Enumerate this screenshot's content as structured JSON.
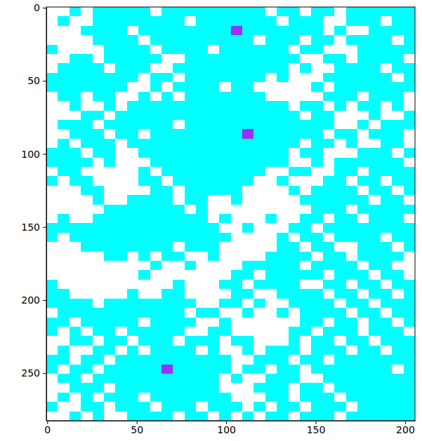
{
  "chart_data": {
    "type": "heatmap",
    "colors": [
      "#ffffff",
      "#00ffff",
      "#9b30ff"
    ],
    "xlim": [
      -0.5,
      205.5
    ],
    "ylim": [
      282.5,
      -0.5
    ],
    "xticks": [
      0,
      50,
      100,
      150,
      200
    ],
    "yticks": [
      0,
      50,
      100,
      150,
      200,
      250
    ],
    "cells": [
      [
        0,
        0,
        1,
        0,
        1,
        1,
        1,
        1,
        1,
        0,
        1,
        1,
        1,
        1,
        1,
        1,
        1,
        1,
        1,
        0,
        1,
        1,
        0,
        1,
        1,
        0,
        1,
        1,
        1,
        1,
        1,
        1
      ],
      [
        0,
        1,
        0,
        0,
        1,
        1,
        1,
        1,
        1,
        1,
        1,
        1,
        0,
        1,
        1,
        1,
        1,
        1,
        1,
        1,
        0,
        1,
        1,
        1,
        0,
        0,
        1,
        1,
        1,
        0,
        1,
        1
      ],
      [
        0,
        0,
        0,
        1,
        1,
        1,
        1,
        0,
        1,
        1,
        1,
        1,
        1,
        1,
        1,
        1,
        2,
        1,
        1,
        1,
        1,
        1,
        1,
        1,
        0,
        1,
        0,
        0,
        1,
        1,
        1,
        1
      ],
      [
        0,
        0,
        0,
        0,
        1,
        1,
        1,
        1,
        0,
        1,
        1,
        1,
        1,
        1,
        1,
        1,
        1,
        1,
        0,
        1,
        1,
        1,
        0,
        1,
        1,
        0,
        1,
        1,
        1,
        1,
        0,
        1
      ],
      [
        1,
        0,
        0,
        0,
        0,
        1,
        1,
        1,
        1,
        0,
        1,
        1,
        1,
        1,
        0,
        1,
        1,
        1,
        1,
        1,
        1,
        0,
        1,
        1,
        0,
        0,
        0,
        1,
        1,
        1,
        1,
        1
      ],
      [
        0,
        0,
        1,
        1,
        0,
        1,
        1,
        1,
        1,
        1,
        0,
        0,
        1,
        1,
        1,
        1,
        1,
        1,
        1,
        1,
        1,
        1,
        0,
        0,
        1,
        1,
        0,
        1,
        1,
        1,
        1,
        0
      ],
      [
        0,
        1,
        1,
        1,
        1,
        0,
        1,
        1,
        1,
        0,
        0,
        1,
        1,
        1,
        1,
        1,
        1,
        1,
        1,
        1,
        1,
        0,
        1,
        0,
        0,
        1,
        1,
        1,
        1,
        0,
        1,
        1
      ],
      [
        1,
        1,
        1,
        1,
        1,
        1,
        1,
        1,
        0,
        1,
        1,
        0,
        1,
        1,
        1,
        1,
        1,
        1,
        1,
        0,
        1,
        0,
        0,
        0,
        1,
        1,
        1,
        1,
        1,
        1,
        0,
        1
      ],
      [
        1,
        1,
        1,
        1,
        1,
        1,
        1,
        0,
        0,
        1,
        0,
        1,
        1,
        1,
        1,
        0,
        1,
        1,
        0,
        0,
        0,
        0,
        0,
        1,
        0,
        1,
        1,
        1,
        1,
        1,
        1,
        1
      ],
      [
        0,
        1,
        1,
        0,
        1,
        1,
        0,
        0,
        1,
        0,
        1,
        0,
        1,
        1,
        1,
        1,
        1,
        1,
        1,
        0,
        0,
        0,
        0,
        0,
        1,
        1,
        1,
        0,
        1,
        1,
        1,
        0
      ],
      [
        0,
        0,
        1,
        0,
        0,
        1,
        0,
        1,
        1,
        1,
        1,
        1,
        1,
        1,
        1,
        1,
        1,
        1,
        1,
        1,
        1,
        0,
        1,
        1,
        0,
        1,
        0,
        1,
        1,
        0,
        1,
        0
      ],
      [
        0,
        0,
        0,
        1,
        1,
        0,
        1,
        1,
        1,
        1,
        1,
        1,
        1,
        1,
        1,
        1,
        1,
        1,
        1,
        1,
        1,
        1,
        0,
        1,
        1,
        0,
        0,
        0,
        1,
        0,
        0,
        1
      ],
      [
        0,
        1,
        1,
        1,
        0,
        1,
        1,
        1,
        1,
        1,
        1,
        0,
        1,
        1,
        1,
        1,
        1,
        1,
        1,
        1,
        1,
        1,
        1,
        1,
        1,
        0,
        0,
        1,
        0,
        1,
        1,
        1
      ],
      [
        0,
        0,
        1,
        1,
        1,
        0,
        1,
        1,
        0,
        1,
        1,
        1,
        1,
        1,
        1,
        1,
        1,
        2,
        1,
        1,
        1,
        1,
        1,
        1,
        0,
        1,
        1,
        0,
        1,
        1,
        1,
        0
      ],
      [
        0,
        1,
        0,
        1,
        1,
        1,
        0,
        1,
        1,
        1,
        1,
        1,
        1,
        1,
        1,
        1,
        1,
        1,
        1,
        1,
        1,
        1,
        0,
        1,
        1,
        0,
        1,
        0,
        0,
        1,
        1,
        0
      ],
      [
        1,
        1,
        1,
        0,
        1,
        1,
        0,
        0,
        1,
        1,
        1,
        1,
        1,
        1,
        1,
        1,
        1,
        1,
        1,
        1,
        1,
        0,
        1,
        1,
        0,
        0,
        0,
        1,
        1,
        1,
        0,
        1
      ],
      [
        1,
        1,
        1,
        1,
        0,
        1,
        0,
        0,
        0,
        1,
        1,
        1,
        1,
        1,
        1,
        1,
        1,
        1,
        1,
        1,
        1,
        0,
        0,
        1,
        0,
        1,
        1,
        1,
        1,
        1,
        1,
        0
      ],
      [
        0,
        1,
        1,
        0,
        0,
        0,
        0,
        0,
        1,
        0,
        1,
        1,
        1,
        1,
        1,
        1,
        1,
        1,
        1,
        0,
        0,
        1,
        1,
        0,
        0,
        1,
        1,
        0,
        1,
        1,
        1,
        1
      ],
      [
        1,
        0,
        1,
        1,
        0,
        0,
        0,
        0,
        1,
        1,
        0,
        1,
        1,
        1,
        1,
        1,
        1,
        1,
        0,
        0,
        1,
        0,
        0,
        0,
        1,
        1,
        0,
        1,
        1,
        0,
        1,
        1
      ],
      [
        0,
        0,
        0,
        1,
        1,
        0,
        0,
        0,
        0,
        1,
        1,
        0,
        1,
        1,
        1,
        1,
        1,
        0,
        0,
        0,
        0,
        1,
        0,
        1,
        1,
        1,
        1,
        0,
        1,
        1,
        0,
        1
      ],
      [
        0,
        0,
        0,
        0,
        1,
        0,
        0,
        1,
        1,
        1,
        1,
        0,
        1,
        1,
        0,
        0,
        1,
        0,
        0,
        0,
        0,
        0,
        1,
        1,
        1,
        1,
        1,
        1,
        0,
        1,
        1,
        0
      ],
      [
        0,
        0,
        0,
        0,
        0,
        1,
        1,
        1,
        1,
        1,
        1,
        1,
        0,
        1,
        0,
        0,
        0,
        0,
        0,
        0,
        0,
        0,
        0,
        1,
        1,
        1,
        0,
        1,
        1,
        1,
        1,
        1
      ],
      [
        0,
        1,
        0,
        0,
        1,
        1,
        1,
        1,
        1,
        1,
        1,
        1,
        1,
        1,
        0,
        1,
        0,
        0,
        0,
        1,
        0,
        0,
        1,
        1,
        0,
        1,
        1,
        0,
        1,
        1,
        1,
        0
      ],
      [
        1,
        1,
        1,
        1,
        1,
        1,
        1,
        1,
        1,
        1,
        1,
        1,
        1,
        1,
        1,
        0,
        0,
        1,
        0,
        0,
        0,
        1,
        1,
        0,
        1,
        1,
        1,
        1,
        1,
        1,
        1,
        1
      ],
      [
        1,
        0,
        1,
        1,
        1,
        1,
        1,
        1,
        1,
        1,
        1,
        1,
        1,
        1,
        1,
        1,
        0,
        0,
        0,
        0,
        1,
        0,
        1,
        1,
        0,
        1,
        1,
        1,
        1,
        0,
        1,
        1
      ],
      [
        0,
        0,
        0,
        1,
        1,
        1,
        1,
        1,
        1,
        1,
        1,
        0,
        1,
        1,
        1,
        0,
        0,
        0,
        0,
        0,
        1,
        1,
        0,
        1,
        1,
        0,
        0,
        1,
        1,
        1,
        0,
        1
      ],
      [
        0,
        0,
        0,
        0,
        0,
        1,
        1,
        0,
        1,
        0,
        1,
        1,
        0,
        0,
        1,
        0,
        0,
        0,
        0,
        1,
        1,
        1,
        1,
        0,
        1,
        1,
        0,
        1,
        1,
        1,
        1,
        0
      ],
      [
        0,
        0,
        0,
        0,
        0,
        0,
        0,
        0,
        0,
        1,
        0,
        0,
        1,
        0,
        0,
        0,
        0,
        1,
        1,
        1,
        1,
        1,
        0,
        1,
        1,
        1,
        1,
        0,
        1,
        1,
        0,
        0
      ],
      [
        0,
        0,
        0,
        0,
        0,
        0,
        0,
        0,
        1,
        0,
        0,
        0,
        0,
        0,
        0,
        0,
        1,
        1,
        0,
        1,
        1,
        1,
        1,
        1,
        0,
        1,
        1,
        1,
        0,
        1,
        1,
        0
      ],
      [
        1,
        0,
        0,
        0,
        0,
        0,
        0,
        0,
        0,
        0,
        0,
        1,
        0,
        0,
        0,
        1,
        1,
        0,
        1,
        1,
        1,
        1,
        0,
        0,
        1,
        1,
        0,
        1,
        1,
        0,
        1,
        1
      ],
      [
        1,
        1,
        0,
        0,
        0,
        0,
        0,
        1,
        0,
        0,
        1,
        1,
        0,
        0,
        0,
        0,
        1,
        1,
        0,
        0,
        1,
        1,
        1,
        1,
        0,
        1,
        1,
        0,
        1,
        1,
        0,
        1
      ],
      [
        1,
        1,
        1,
        1,
        0,
        1,
        1,
        1,
        1,
        1,
        1,
        1,
        1,
        0,
        0,
        1,
        1,
        0,
        1,
        0,
        0,
        1,
        1,
        1,
        1,
        0,
        1,
        1,
        0,
        1,
        1,
        1
      ],
      [
        0,
        1,
        1,
        1,
        1,
        1,
        1,
        1,
        1,
        1,
        1,
        1,
        0,
        1,
        1,
        0,
        0,
        1,
        0,
        0,
        1,
        0,
        1,
        1,
        1,
        1,
        0,
        1,
        1,
        0,
        1,
        1
      ],
      [
        1,
        1,
        0,
        1,
        1,
        1,
        1,
        1,
        0,
        1,
        1,
        1,
        1,
        0,
        0,
        1,
        0,
        0,
        0,
        0,
        0,
        0,
        1,
        1,
        0,
        1,
        1,
        0,
        1,
        1,
        0,
        1
      ],
      [
        1,
        0,
        1,
        0,
        1,
        1,
        0,
        1,
        1,
        1,
        1,
        1,
        0,
        0,
        1,
        1,
        0,
        0,
        0,
        0,
        0,
        1,
        1,
        0,
        1,
        1,
        1,
        0,
        1,
        1,
        1,
        0
      ],
      [
        0,
        0,
        1,
        1,
        0,
        1,
        1,
        0,
        1,
        1,
        1,
        0,
        1,
        1,
        1,
        0,
        1,
        1,
        0,
        0,
        0,
        1,
        0,
        1,
        1,
        0,
        1,
        1,
        0,
        1,
        1,
        1
      ],
      [
        0,
        1,
        0,
        0,
        1,
        1,
        0,
        1,
        0,
        1,
        1,
        1,
        1,
        0,
        1,
        0,
        0,
        1,
        0,
        1,
        1,
        1,
        0,
        1,
        1,
        1,
        0,
        1,
        1,
        0,
        1,
        1
      ],
      [
        1,
        1,
        0,
        1,
        1,
        0,
        1,
        1,
        1,
        1,
        1,
        1,
        1,
        1,
        1,
        1,
        0,
        0,
        1,
        1,
        1,
        0,
        1,
        1,
        0,
        1,
        1,
        1,
        1,
        1,
        1,
        1
      ],
      [
        1,
        0,
        1,
        1,
        0,
        1,
        1,
        1,
        1,
        1,
        2,
        1,
        1,
        1,
        1,
        1,
        0,
        1,
        1,
        0,
        1,
        1,
        0,
        1,
        1,
        1,
        1,
        1,
        1,
        1,
        0,
        1
      ],
      [
        0,
        1,
        1,
        0,
        1,
        1,
        1,
        1,
        1,
        1,
        1,
        1,
        1,
        1,
        1,
        0,
        1,
        0,
        0,
        1,
        1,
        1,
        0,
        0,
        1,
        1,
        1,
        1,
        1,
        1,
        1,
        1
      ],
      [
        0,
        0,
        1,
        1,
        1,
        0,
        1,
        1,
        1,
        1,
        1,
        1,
        1,
        1,
        1,
        0,
        0,
        0,
        1,
        1,
        1,
        0,
        1,
        1,
        0,
        1,
        1,
        1,
        1,
        1,
        1,
        1
      ],
      [
        0,
        1,
        0,
        1,
        0,
        1,
        1,
        1,
        0,
        1,
        1,
        1,
        1,
        1,
        1,
        1,
        0,
        0,
        0,
        1,
        1,
        0,
        1,
        1,
        1,
        0,
        1,
        1,
        1,
        1,
        1,
        1
      ],
      [
        1,
        0,
        0,
        1,
        1,
        0,
        1,
        1,
        1,
        0,
        1,
        1,
        1,
        0,
        1,
        1,
        1,
        0,
        1,
        0,
        1,
        1,
        0,
        1,
        1,
        1,
        0,
        1,
        1,
        1,
        1,
        1
      ],
      [
        0,
        0,
        1,
        0,
        1,
        0,
        0,
        1,
        1,
        1,
        1,
        0,
        1,
        1,
        0,
        1,
        0,
        1,
        0,
        1,
        1,
        0,
        1,
        1,
        1,
        0,
        1,
        1,
        1,
        1,
        1,
        1
      ]
    ]
  }
}
